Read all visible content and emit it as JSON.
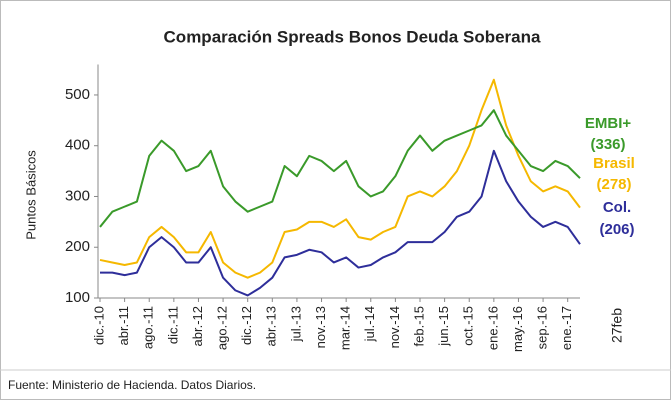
{
  "chart_data": {
    "type": "line",
    "title": "Comparación Spreads Bonos Deuda Soberana",
    "y_label": "Puntos Básicos",
    "end_date": "27feb",
    "source": "Fuente:  Ministerio de Hacienda. Datos Diarios.",
    "categories": [
      "dic.-10",
      null,
      "abr.-11",
      null,
      "ago.-11",
      null,
      "dic.-11",
      null,
      "abr.-12",
      null,
      "ago.-12",
      null,
      "dic.-12",
      null,
      "abr.-13",
      null,
      "jul.-13",
      null,
      "nov.-13",
      null,
      "mar.-14",
      null,
      "jul.-14",
      null,
      "nov.-14",
      null,
      "feb.-15",
      null,
      "jun.-15",
      null,
      "oct.-15",
      null,
      "ene.-16",
      null,
      "may.-16",
      null,
      "sep.-16",
      null,
      "ene.-17",
      null
    ],
    "series": [
      {
        "name": "EMBI+",
        "end_label": "(336)",
        "color": "#3a9a2a",
        "values": [
          240,
          270,
          280,
          290,
          380,
          410,
          390,
          350,
          360,
          390,
          320,
          290,
          270,
          280,
          290,
          360,
          340,
          380,
          370,
          350,
          370,
          320,
          300,
          310,
          340,
          390,
          420,
          390,
          410,
          420,
          430,
          440,
          470,
          420,
          390,
          360,
          350,
          370,
          360,
          336
        ]
      },
      {
        "name": "Brasil",
        "end_label": "(278)",
        "color": "#f5b800",
        "values": [
          175,
          170,
          165,
          170,
          220,
          240,
          220,
          190,
          190,
          230,
          170,
          150,
          140,
          150,
          170,
          230,
          235,
          250,
          250,
          240,
          255,
          220,
          215,
          230,
          240,
          300,
          310,
          300,
          320,
          350,
          400,
          470,
          530,
          440,
          380,
          330,
          310,
          320,
          310,
          278
        ]
      },
      {
        "name": "Col.",
        "end_label": "(206)",
        "color": "#2e2e9a",
        "values": [
          150,
          150,
          145,
          150,
          200,
          220,
          200,
          170,
          170,
          200,
          140,
          115,
          105,
          120,
          140,
          180,
          185,
          195,
          190,
          170,
          180,
          160,
          165,
          180,
          190,
          210,
          210,
          210,
          230,
          260,
          270,
          300,
          390,
          330,
          290,
          260,
          240,
          250,
          240,
          206
        ]
      }
    ],
    "ylim": [
      100,
      560
    ],
    "yticks": [
      100,
      200,
      300,
      400,
      500
    ],
    "grid": false
  }
}
